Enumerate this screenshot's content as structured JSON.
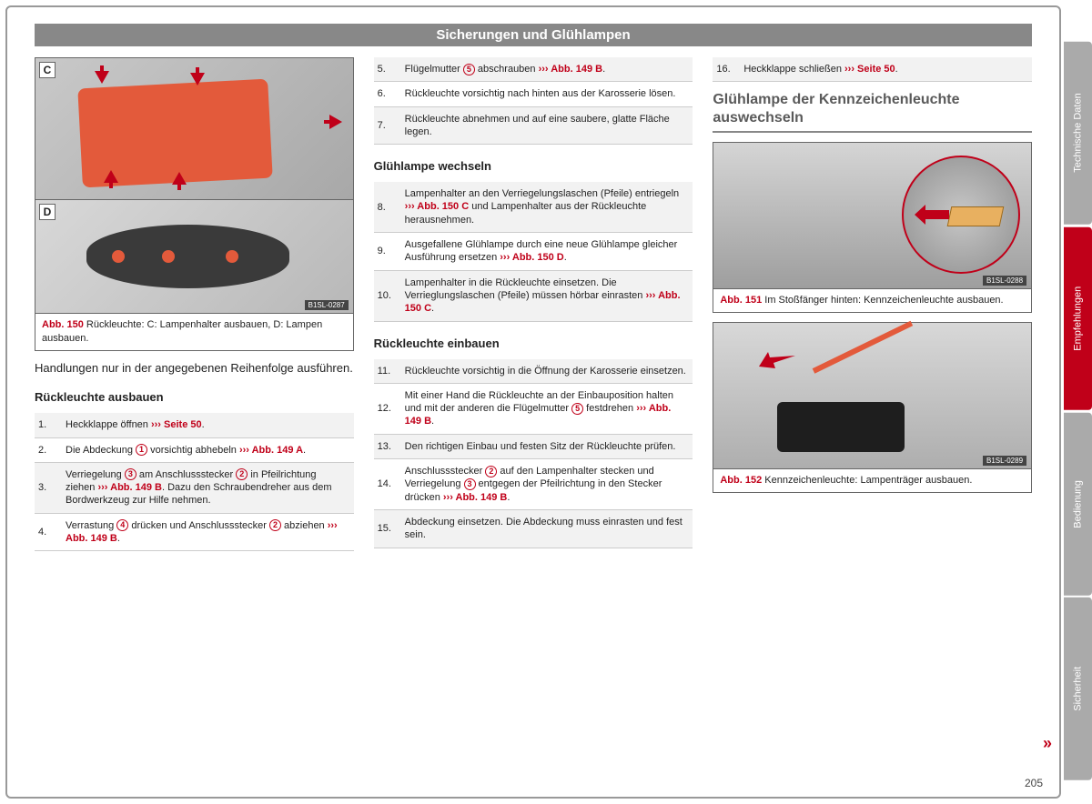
{
  "page": {
    "number": "205",
    "title": "Sicherungen und Glühlampen"
  },
  "tabs": [
    {
      "label": "Technische Daten",
      "active": false
    },
    {
      "label": "Empfehlungen",
      "active": true
    },
    {
      "label": "Bedienung",
      "active": false
    },
    {
      "label": "Sicherheit",
      "active": false
    }
  ],
  "col1": {
    "fig150": {
      "tagC": "C",
      "tagD": "D",
      "codeD": "B1SL-0287",
      "cap_ref": "Abb. 150",
      "cap_text": "  Rückleuchte: C: Lampenhalter ausbauen, D: Lampen ausbauen."
    },
    "intro": "Handlungen nur in der angegebenen Reihenfolge ausführen.",
    "sec1_head": "Rückleuchte ausbauen",
    "steps1": [
      {
        "n": "1.",
        "pre": "Heckklappe öffnen ",
        "ref": "››› Seite 50",
        "post": "."
      },
      {
        "n": "2.",
        "pre": "Die Abdeckung ",
        "c": "1",
        "mid": " vorsichtig abhebeln ",
        "ref": "››› Abb. 149 A",
        "post": "."
      },
      {
        "n": "3.",
        "pre": "Verriegelung ",
        "c": "3",
        "mid": " am Anschlussstecker ",
        "c2": "2",
        "mid2": " in Pfeilrichtung ziehen ",
        "ref": "››› Abb. 149 B",
        "post": ". Dazu den Schraubendreher aus dem Bordwerkzeug zur Hilfe nehmen."
      },
      {
        "n": "4.",
        "pre": "Verrastung ",
        "c": "4",
        "mid": " drücken und Anschlussstecker ",
        "c2": "2",
        "mid2": " abziehen ",
        "ref": "››› Abb. 149 B",
        "post": "."
      }
    ]
  },
  "col2": {
    "steps_top": [
      {
        "n": "5.",
        "pre": "Flügelmutter ",
        "c": "5",
        "mid": " abschrauben ",
        "ref": "››› Abb. 149 B",
        "post": "."
      },
      {
        "n": "6.",
        "pre": "Rückleuchte vorsichtig nach hinten aus der Karosserie lösen.",
        "ref": "",
        "post": ""
      },
      {
        "n": "7.",
        "pre": "Rückleuchte abnehmen und auf eine saubere, glatte Fläche legen.",
        "ref": "",
        "post": ""
      }
    ],
    "sec2_head": "Glühlampe wechseln",
    "steps2": [
      {
        "n": "8.",
        "pre": "Lampenhalter an den Verriegelungslaschen (Pfeile) entriegeln ",
        "ref": "››› Abb. 150 C",
        "post": " und Lampenhalter aus der Rückleuchte herausnehmen."
      },
      {
        "n": "9.",
        "pre": "Ausgefallene Glühlampe durch eine neue Glühlampe gleicher Ausführung ersetzen ",
        "ref": "››› Abb. 150 D",
        "post": "."
      },
      {
        "n": "10.",
        "pre": "Lampenhalter in die Rückleuchte einsetzen. Die Verrieglungslaschen (Pfeile) müssen hörbar einrasten ",
        "ref": "››› Abb. 150 C",
        "post": "."
      }
    ],
    "sec3_head": "Rückleuchte einbauen",
    "steps3": [
      {
        "n": "11.",
        "pre": "Rückleuchte vorsichtig in die Öffnung der Karosserie einsetzen.",
        "ref": "",
        "post": ""
      },
      {
        "n": "12.",
        "pre": "Mit einer Hand die Rückleuchte an der Einbauposition halten und mit der anderen die Flügelmutter ",
        "c": "5",
        "mid": " festdrehen ",
        "ref": "››› Abb. 149 B",
        "post": "."
      },
      {
        "n": "13.",
        "pre": "Den richtigen Einbau und festen Sitz der Rückleuchte prüfen.",
        "ref": "",
        "post": ""
      },
      {
        "n": "14.",
        "pre": "Anschlussstecker ",
        "c": "2",
        "mid": " auf den Lampenhalter stecken und Verriegelung ",
        "c2": "3",
        "mid2": " entgegen der Pfeilrichtung in den Stecker drücken ",
        "ref": "››› Abb. 149 B",
        "post": "."
      },
      {
        "n": "15.",
        "pre": "Abdeckung einsetzen. Die Abdeckung muss einrasten und fest sein.",
        "ref": "",
        "post": ""
      }
    ]
  },
  "col3": {
    "step16": {
      "n": "16.",
      "pre": "Heckklappe schließen ",
      "ref": "››› Seite 50",
      "post": "."
    },
    "sec_head": "Glühlampe der Kennzeichenleuchte auswechseln",
    "fig151": {
      "code": "B1SL-0288",
      "cap_ref": "Abb. 151",
      "cap_text": "  Im Stoßfänger hinten: Kennzeichenleuchte ausbauen."
    },
    "fig152": {
      "code": "B1SL-0289",
      "cap_ref": "Abb. 152",
      "cap_text": "  Kennzeichenleuchte: Lampenträger ausbauen."
    }
  }
}
